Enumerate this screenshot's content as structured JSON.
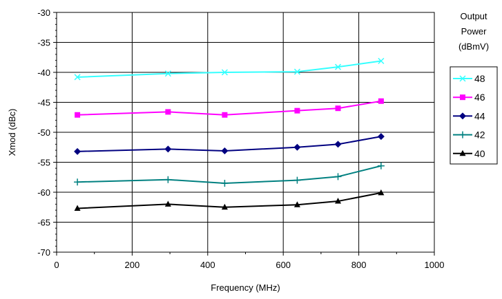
{
  "chart_data": {
    "type": "line",
    "title": "",
    "xlabel": "Frequency (MHz)",
    "ylabel": "Xmod (dBc)",
    "xlim": [
      0,
      1000
    ],
    "ylim": [
      -70,
      -30
    ],
    "xticks": [
      0,
      200,
      400,
      600,
      800,
      1000
    ],
    "xtick_labels": [
      "0",
      "200",
      "400",
      "600",
      "800",
      "1000"
    ],
    "yticks": [
      -30,
      -35,
      -40,
      -45,
      -50,
      -55,
      -60,
      -65,
      -70
    ],
    "ytick_labels": [
      "-30",
      "-35",
      "-40",
      "-45",
      "-50",
      "-55",
      "-60",
      "-65",
      "-70"
    ],
    "grid": true,
    "legend_title": [
      "Output",
      "Power",
      "(dBmV)"
    ],
    "legend_placement": "right",
    "x": [
      55,
      295,
      445,
      637,
      745,
      859
    ],
    "series": [
      {
        "name": "48",
        "color": "#33ffff",
        "marker": "x-icon",
        "values": [
          -40.8,
          -40.2,
          -40.0,
          -39.9,
          -39.1,
          -38.1
        ]
      },
      {
        "name": "46",
        "color": "#ff00ff",
        "marker": "square-icon",
        "values": [
          -47.1,
          -46.6,
          -47.1,
          -46.4,
          -46.0,
          -44.8
        ]
      },
      {
        "name": "44",
        "color": "#000080",
        "marker": "diamond-icon",
        "values": [
          -53.2,
          -52.8,
          -53.1,
          -52.5,
          -52.0,
          -50.7
        ]
      },
      {
        "name": "42",
        "color": "#008080",
        "marker": "plus-icon",
        "values": [
          -58.3,
          -57.9,
          -58.5,
          -58.0,
          -57.4,
          -55.6
        ]
      },
      {
        "name": "40",
        "color": "#000000",
        "marker": "triangle-icon",
        "values": [
          -62.7,
          -62.0,
          -62.5,
          -62.1,
          -61.5,
          -60.1
        ]
      }
    ]
  }
}
